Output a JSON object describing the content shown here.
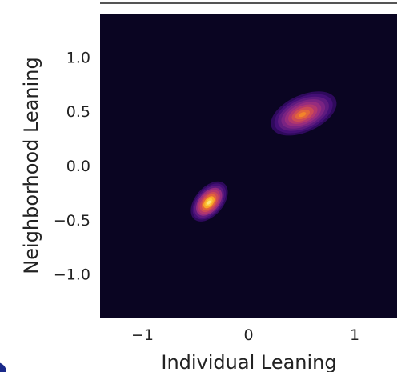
{
  "chart_data": {
    "type": "kde-contour",
    "xlabel": "Individual Leaning",
    "ylabel": "Neighborhood Leaning",
    "xlim": [
      -1.4,
      1.4
    ],
    "ylim": [
      -1.4,
      1.4
    ],
    "xticks": [
      {
        "value": -1,
        "label": "−1"
      },
      {
        "value": 0,
        "label": "0"
      },
      {
        "value": 1,
        "label": "1"
      }
    ],
    "yticks": [
      {
        "value": 1.0,
        "label": "1.0"
      },
      {
        "value": 0.5,
        "label": "0.5"
      },
      {
        "value": 0.0,
        "label": "0.0"
      },
      {
        "value": -0.5,
        "label": "−0.5"
      },
      {
        "value": -1.0,
        "label": "−1.0"
      }
    ],
    "grid": false,
    "colormap": "inferno",
    "background": "#0a0522",
    "clusters": [
      {
        "center": [
          0.52,
          0.48
        ],
        "spread": [
          0.33,
          0.17
        ],
        "angle_deg": 24,
        "peak": 0.85
      },
      {
        "center": [
          -0.37,
          -0.33
        ],
        "spread": [
          0.22,
          0.13
        ],
        "angle_deg": 50,
        "peak": 1.0
      }
    ],
    "levels": 10
  }
}
